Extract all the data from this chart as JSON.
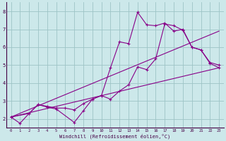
{
  "xlabel": "Windchill (Refroidissement éolien,°C)",
  "xlim": [
    -0.5,
    23.5
  ],
  "ylim": [
    1.5,
    8.5
  ],
  "xticks": [
    0,
    1,
    2,
    3,
    4,
    5,
    6,
    7,
    8,
    9,
    10,
    11,
    12,
    13,
    14,
    15,
    16,
    17,
    18,
    19,
    20,
    21,
    22,
    23
  ],
  "yticks": [
    2,
    3,
    4,
    5,
    6,
    7,
    8
  ],
  "bg_color": "#cce8ea",
  "grid_color": "#9dc4c6",
  "line_color": "#880088",
  "lines": [
    {
      "x": [
        0,
        1,
        2,
        3,
        4,
        5,
        7,
        8,
        9,
        10,
        11,
        12,
        13,
        14,
        15,
        16,
        17,
        18,
        19,
        20,
        21,
        22,
        23
      ],
      "y": [
        2.1,
        1.75,
        2.3,
        2.8,
        2.65,
        2.55,
        1.8,
        2.45,
        3.1,
        3.3,
        3.1,
        3.55,
        3.9,
        4.9,
        4.75,
        5.35,
        7.3,
        7.2,
        6.95,
        6.0,
        5.85,
        5.1,
        4.85
      ],
      "marker": true
    },
    {
      "x": [
        0,
        2,
        3,
        4,
        5,
        6,
        7,
        8,
        9,
        10,
        11,
        12,
        13,
        14,
        15,
        16,
        17,
        18,
        19,
        20,
        21,
        22,
        23
      ],
      "y": [
        2.1,
        2.3,
        2.8,
        2.7,
        2.6,
        2.6,
        2.5,
        2.85,
        3.1,
        3.3,
        4.85,
        6.3,
        6.2,
        7.95,
        7.25,
        7.2,
        7.35,
        6.9,
        7.0,
        6.0,
        5.85,
        5.15,
        5.0
      ],
      "marker": true
    },
    {
      "x": [
        0,
        23
      ],
      "y": [
        2.1,
        4.85
      ],
      "marker": false
    },
    {
      "x": [
        0,
        23
      ],
      "y": [
        2.1,
        6.9
      ],
      "marker": false
    }
  ]
}
